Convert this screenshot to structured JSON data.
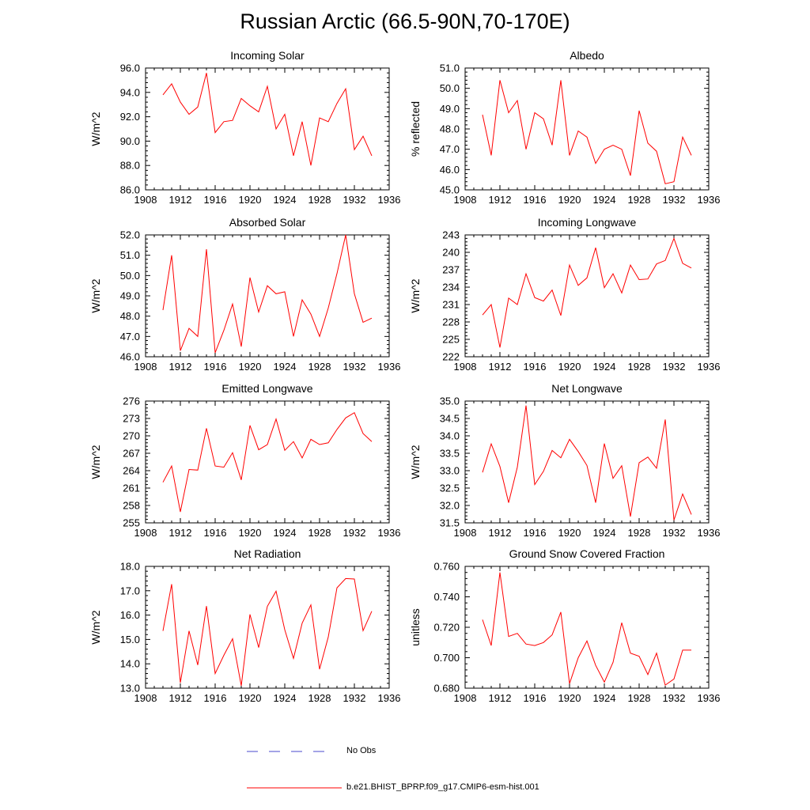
{
  "title": "Russian Arctic (66.5-90N,70-170E)",
  "legend": [
    {
      "label": "No Obs",
      "color": "#4a4acc",
      "style": "dashed"
    },
    {
      "label": "b.e21.BHIST_BPRP.f09_g17.CMIP6-esm-hist.001",
      "color": "#ff0000",
      "style": "solid"
    }
  ],
  "chart_data": [
    {
      "type": "line",
      "title": "Incoming Solar",
      "xlabel": "",
      "ylabel": "W/m^2",
      "xlim": [
        1908,
        1936
      ],
      "ylim": [
        86.0,
        96.0
      ],
      "xticks": [
        "1908",
        "1912",
        "1916",
        "1920",
        "1924",
        "1928",
        "1932",
        "1936"
      ],
      "yticks": [
        "86.0",
        "88.0",
        "90.0",
        "92.0",
        "94.0",
        "96.0"
      ],
      "x": [
        1910,
        1911,
        1912,
        1913,
        1914,
        1915,
        1916,
        1917,
        1918,
        1919,
        1920,
        1921,
        1922,
        1923,
        1924,
        1925,
        1926,
        1927,
        1928,
        1929,
        1930,
        1931,
        1932,
        1933,
        1934
      ],
      "series": [
        {
          "name": "b.e21.BHIST_BPRP.f09_g17.CMIP6-esm-hist.001",
          "color": "#ff0000",
          "values": [
            93.8,
            94.7,
            93.2,
            92.2,
            92.8,
            95.6,
            90.7,
            91.6,
            91.7,
            93.5,
            92.9,
            92.4,
            94.5,
            91.0,
            92.2,
            88.8,
            91.6,
            88.0,
            91.9,
            91.6,
            93.1,
            94.3,
            89.3,
            90.4,
            88.8
          ]
        }
      ]
    },
    {
      "type": "line",
      "title": "Albedo",
      "xlabel": "",
      "ylabel": "% reflected",
      "xlim": [
        1908,
        1936
      ],
      "ylim": [
        45.0,
        51.0
      ],
      "xticks": [
        "1908",
        "1912",
        "1916",
        "1920",
        "1924",
        "1928",
        "1932",
        "1936"
      ],
      "yticks": [
        "45.0",
        "46.0",
        "47.0",
        "48.0",
        "49.0",
        "50.0",
        "51.0"
      ],
      "x": [
        1910,
        1911,
        1912,
        1913,
        1914,
        1915,
        1916,
        1917,
        1918,
        1919,
        1920,
        1921,
        1922,
        1923,
        1924,
        1925,
        1926,
        1927,
        1928,
        1929,
        1930,
        1931,
        1932,
        1933,
        1934
      ],
      "series": [
        {
          "name": "b.e21.BHIST_BPRP.f09_g17.CMIP6-esm-hist.001",
          "color": "#ff0000",
          "values": [
            48.7,
            46.7,
            50.4,
            48.8,
            49.4,
            47.0,
            48.8,
            48.5,
            47.2,
            50.4,
            46.7,
            47.9,
            47.6,
            46.3,
            47.0,
            47.2,
            47.0,
            45.7,
            48.9,
            47.3,
            46.9,
            45.3,
            45.4,
            47.6,
            46.7
          ]
        }
      ]
    },
    {
      "type": "line",
      "title": "Absorbed Solar",
      "xlabel": "",
      "ylabel": "W/m^2",
      "xlim": [
        1908,
        1936
      ],
      "ylim": [
        46.0,
        52.0
      ],
      "xticks": [
        "1908",
        "1912",
        "1916",
        "1920",
        "1924",
        "1928",
        "1932",
        "1936"
      ],
      "yticks": [
        "46.0",
        "47.0",
        "48.0",
        "49.0",
        "50.0",
        "51.0",
        "52.0"
      ],
      "x": [
        1910,
        1911,
        1912,
        1913,
        1914,
        1915,
        1916,
        1917,
        1918,
        1919,
        1920,
        1921,
        1922,
        1923,
        1924,
        1925,
        1926,
        1927,
        1928,
        1929,
        1930,
        1931,
        1932,
        1933,
        1934
      ],
      "series": [
        {
          "name": "b.e21.BHIST_BPRP.f09_g17.CMIP6-esm-hist.001",
          "color": "#ff0000",
          "values": [
            48.3,
            51.0,
            46.3,
            47.4,
            47.0,
            51.3,
            46.2,
            47.3,
            48.6,
            46.5,
            49.9,
            48.2,
            49.5,
            49.1,
            49.2,
            47.0,
            48.8,
            48.1,
            47.0,
            48.4,
            50.1,
            52.0,
            49.1,
            47.7,
            47.9
          ]
        }
      ]
    },
    {
      "type": "line",
      "title": "Incoming Longwave",
      "xlabel": "",
      "ylabel": "W/m^2",
      "xlim": [
        1908,
        1936
      ],
      "ylim": [
        222,
        243
      ],
      "xticks": [
        "1908",
        "1912",
        "1916",
        "1920",
        "1924",
        "1928",
        "1932",
        "1936"
      ],
      "yticks": [
        "222",
        "225",
        "228",
        "231",
        "234",
        "237",
        "240",
        "243"
      ],
      "x": [
        1910,
        1911,
        1912,
        1913,
        1914,
        1915,
        1916,
        1917,
        1918,
        1919,
        1920,
        1921,
        1922,
        1923,
        1924,
        1925,
        1926,
        1927,
        1928,
        1929,
        1930,
        1931,
        1932,
        1933,
        1934
      ],
      "series": [
        {
          "name": "b.e21.BHIST_BPRP.f09_g17.CMIP6-esm-hist.001",
          "color": "#ff0000",
          "values": [
            229.2,
            231.0,
            223.6,
            232.1,
            231.0,
            236.3,
            232.2,
            231.6,
            233.5,
            229.1,
            237.8,
            234.3,
            235.6,
            240.8,
            233.9,
            236.3,
            233.0,
            237.8,
            235.3,
            235.4,
            238.0,
            238.6,
            242.4,
            238.1,
            237.3
          ]
        }
      ]
    },
    {
      "type": "line",
      "title": "Emitted Longwave",
      "xlabel": "",
      "ylabel": "W/m^2",
      "xlim": [
        1908,
        1936
      ],
      "ylim": [
        255,
        276
      ],
      "xticks": [
        "1908",
        "1912",
        "1916",
        "1920",
        "1924",
        "1928",
        "1932",
        "1936"
      ],
      "yticks": [
        "255",
        "258",
        "261",
        "264",
        "267",
        "270",
        "273",
        "276"
      ],
      "x": [
        1910,
        1911,
        1912,
        1913,
        1914,
        1915,
        1916,
        1917,
        1918,
        1919,
        1920,
        1921,
        1922,
        1923,
        1924,
        1925,
        1926,
        1927,
        1928,
        1929,
        1930,
        1931,
        1932,
        1933,
        1934
      ],
      "series": [
        {
          "name": "b.e21.BHIST_BPRP.f09_g17.CMIP6-esm-hist.001",
          "color": "#ff0000",
          "values": [
            262.0,
            264.8,
            256.9,
            264.2,
            264.1,
            271.3,
            264.8,
            264.6,
            267.1,
            262.4,
            271.8,
            267.6,
            268.5,
            272.9,
            267.5,
            269.0,
            266.2,
            269.4,
            268.5,
            268.8,
            271.1,
            273.1,
            274.0,
            270.4,
            269.0
          ]
        }
      ]
    },
    {
      "type": "line",
      "title": "Net Longwave",
      "xlabel": "",
      "ylabel": "W/m^2",
      "xlim": [
        1908,
        1936
      ],
      "ylim": [
        31.5,
        35.0
      ],
      "xticks": [
        "1908",
        "1912",
        "1916",
        "1920",
        "1924",
        "1928",
        "1932",
        "1936"
      ],
      "yticks": [
        "31.5",
        "32.0",
        "32.5",
        "33.0",
        "33.5",
        "34.0",
        "34.5",
        "35.0"
      ],
      "x": [
        1910,
        1911,
        1912,
        1913,
        1914,
        1915,
        1916,
        1917,
        1918,
        1919,
        1920,
        1921,
        1922,
        1923,
        1924,
        1925,
        1926,
        1927,
        1928,
        1929,
        1930,
        1931,
        1932,
        1933,
        1934
      ],
      "series": [
        {
          "name": "b.e21.BHIST_BPRP.f09_g17.CMIP6-esm-hist.001",
          "color": "#ff0000",
          "values": [
            32.95,
            33.77,
            33.12,
            32.08,
            33.1,
            34.87,
            32.6,
            32.98,
            33.58,
            33.37,
            33.9,
            33.55,
            33.15,
            32.08,
            33.78,
            32.78,
            33.14,
            31.68,
            33.23,
            33.39,
            33.07,
            34.47,
            31.58,
            32.33,
            31.74
          ]
        }
      ]
    },
    {
      "type": "line",
      "title": "Net Radiation",
      "xlabel": "",
      "ylabel": "W/m^2",
      "xlim": [
        1908,
        1936
      ],
      "ylim": [
        13.0,
        18.0
      ],
      "xticks": [
        "1908",
        "1912",
        "1916",
        "1920",
        "1924",
        "1928",
        "1932",
        "1936"
      ],
      "yticks": [
        "13.0",
        "14.0",
        "15.0",
        "16.0",
        "17.0",
        "18.0"
      ],
      "x": [
        1910,
        1911,
        1912,
        1913,
        1914,
        1915,
        1916,
        1917,
        1918,
        1919,
        1920,
        1921,
        1922,
        1923,
        1924,
        1925,
        1926,
        1927,
        1928,
        1929,
        1930,
        1931,
        1932,
        1933,
        1934
      ],
      "series": [
        {
          "name": "b.e21.BHIST_BPRP.f09_g17.CMIP6-esm-hist.001",
          "color": "#ff0000",
          "values": [
            15.35,
            17.27,
            13.22,
            15.35,
            13.95,
            16.37,
            13.6,
            14.35,
            15.03,
            13.1,
            16.03,
            14.67,
            16.36,
            16.98,
            15.4,
            14.22,
            15.67,
            16.42,
            13.78,
            15.1,
            17.12,
            17.5,
            17.48,
            15.36,
            16.16
          ]
        }
      ]
    },
    {
      "type": "line",
      "title": "Ground Snow Covered Fraction",
      "xlabel": "",
      "ylabel": "unitless",
      "xlim": [
        1908,
        1936
      ],
      "ylim": [
        0.68,
        0.76
      ],
      "xticks": [
        "1908",
        "1912",
        "1916",
        "1920",
        "1924",
        "1928",
        "1932",
        "1936"
      ],
      "yticks": [
        "0.680",
        "0.700",
        "0.720",
        "0.740",
        "0.760"
      ],
      "x": [
        1910,
        1911,
        1912,
        1913,
        1914,
        1915,
        1916,
        1917,
        1918,
        1919,
        1920,
        1921,
        1922,
        1923,
        1924,
        1925,
        1926,
        1927,
        1928,
        1929,
        1930,
        1931,
        1932,
        1933,
        1934
      ],
      "series": [
        {
          "name": "b.e21.BHIST_BPRP.f09_g17.CMIP6-esm-hist.001",
          "color": "#ff0000",
          "values": [
            0.725,
            0.708,
            0.756,
            0.714,
            0.716,
            0.709,
            0.708,
            0.71,
            0.715,
            0.73,
            0.683,
            0.7,
            0.711,
            0.695,
            0.684,
            0.697,
            0.723,
            0.703,
            0.701,
            0.689,
            0.703,
            0.682,
            0.686,
            0.705,
            0.705
          ]
        }
      ]
    }
  ]
}
